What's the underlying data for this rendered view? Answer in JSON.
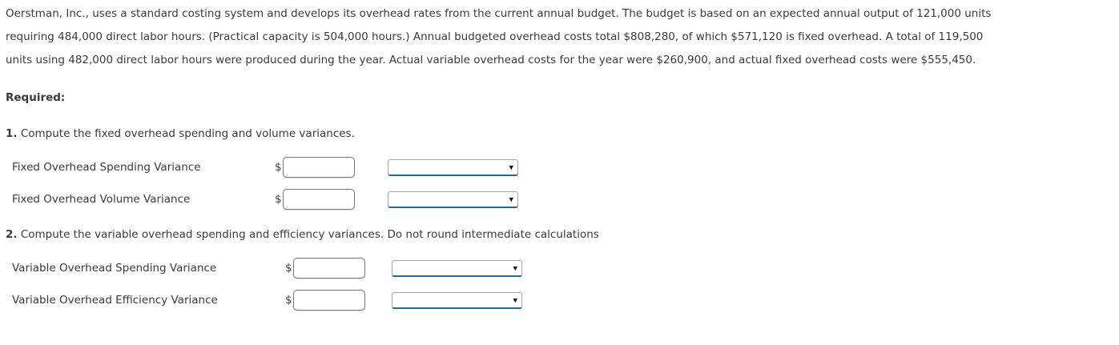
{
  "problem": {
    "lines": [
      "Oerstman, Inc., uses a standard costing system and develops its overhead rates from the current annual budget. The budget is based on an expected annual output of 121,000 units",
      "requiring 484,000 direct labor hours. (Practical capacity is 504,000 hours.) Annual budgeted overhead costs total $808,280, of which $571,120 is fixed overhead. A total of 119,500",
      "units using 482,000 direct labor hours were produced during the year. Actual variable overhead costs for the year were $260,900, and actual fixed overhead costs were $555,450."
    ]
  },
  "required_label": "Required:",
  "questions": [
    {
      "number": "1.",
      "text": "Compute the fixed overhead spending and volume variances.",
      "rows": [
        {
          "label": "Fixed Overhead Spending Variance",
          "currency": "$",
          "input_value": "",
          "dropdown_value": ""
        },
        {
          "label": "Fixed Overhead Volume Variance",
          "currency": "$",
          "input_value": "",
          "dropdown_value": ""
        }
      ]
    },
    {
      "number": "2.",
      "text": "Compute the variable overhead spending and efficiency variances. Do not round intermediate calculations",
      "rows": [
        {
          "label": "Variable Overhead Spending Variance",
          "currency": "$",
          "input_value": "",
          "dropdown_value": ""
        },
        {
          "label": "Variable Overhead Efficiency Variance",
          "currency": "$",
          "input_value": "",
          "dropdown_value": ""
        }
      ]
    }
  ],
  "icons": {
    "dropdown_arrow": "▾"
  },
  "colors": {
    "text": "#3a3a3a",
    "background": "#ffffff",
    "input_border": "#777777",
    "dropdown_border": "#a6a6a6",
    "dropdown_underline": "#2d6591",
    "caret": "#16162e"
  }
}
